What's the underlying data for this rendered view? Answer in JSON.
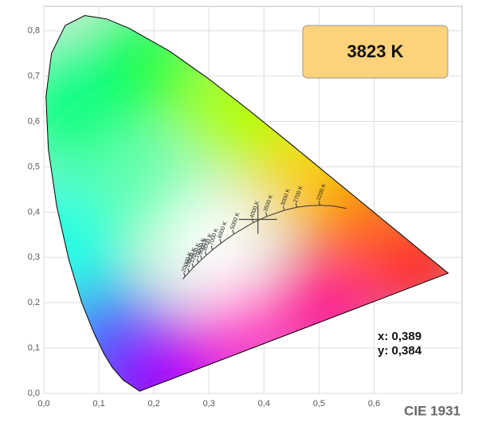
{
  "chart_data": {
    "type": "chromaticity",
    "xlim": [
      0,
      0.76
    ],
    "ylim": [
      0,
      0.854
    ],
    "xticks": [
      {
        "value": 0,
        "label": "0,0"
      },
      {
        "value": 0.1,
        "label": "0,1"
      },
      {
        "value": 0.2,
        "label": "0,2"
      },
      {
        "value": 0.3,
        "label": "0,3"
      },
      {
        "value": 0.4,
        "label": "0,4"
      },
      {
        "value": 0.5,
        "label": "0,5"
      },
      {
        "value": 0.6,
        "label": "0,6"
      }
    ],
    "yticks": [
      {
        "value": 0,
        "label": "0,0"
      },
      {
        "value": 0.1,
        "label": "0,1"
      },
      {
        "value": 0.2,
        "label": "0,2"
      },
      {
        "value": 0.3,
        "label": "0,3"
      },
      {
        "value": 0.4,
        "label": "0,4"
      },
      {
        "value": 0.5,
        "label": "0,5"
      },
      {
        "value": 0.6,
        "label": "0,6"
      },
      {
        "value": 0.7,
        "label": "0,7"
      },
      {
        "value": 0.8,
        "label": "0,8"
      }
    ],
    "grid": true,
    "spectral_locus": {
      "x": [
        0.1741,
        0.144,
        0.1241,
        0.1096,
        0.0913,
        0.0687,
        0.0454,
        0.0235,
        0.0082,
        0.0039,
        0.0139,
        0.0389,
        0.0743,
        0.1142,
        0.1547,
        0.2296,
        0.3016,
        0.3731,
        0.4441,
        0.5125,
        0.5752,
        0.627,
        0.6658,
        0.6915,
        0.7347
      ],
      "y": [
        0.005,
        0.0297,
        0.0578,
        0.0868,
        0.1327,
        0.2007,
        0.295,
        0.4127,
        0.5384,
        0.6548,
        0.7502,
        0.812,
        0.8338,
        0.8262,
        0.8059,
        0.7543,
        0.6923,
        0.6245,
        0.5547,
        0.4866,
        0.4242,
        0.3725,
        0.334,
        0.3083,
        0.2653
      ]
    },
    "planckian_locus": {
      "x": [
        0.5497,
        0.5267,
        0.5018,
        0.477,
        0.4599,
        0.4369,
        0.4053,
        0.3805,
        0.3451,
        0.3221,
        0.3064,
        0.2952,
        0.2869,
        0.2807,
        0.2716,
        0.2637,
        0.2565,
        0.2524
      ],
      "y": [
        0.408,
        0.4133,
        0.4153,
        0.4137,
        0.4106,
        0.4041,
        0.3907,
        0.3768,
        0.3516,
        0.3318,
        0.3166,
        0.3048,
        0.2958,
        0.2884,
        0.2778,
        0.2673,
        0.2577,
        0.2523
      ]
    },
    "cct_labels": [
      {
        "label": "2200 K",
        "x": 0.5018,
        "y": 0.4153
      },
      {
        "label": "2700 K",
        "x": 0.4599,
        "y": 0.4106
      },
      {
        "label": "3000 K",
        "x": 0.4369,
        "y": 0.4041
      },
      {
        "label": "3500 K",
        "x": 0.4053,
        "y": 0.3907
      },
      {
        "label": "4000 K",
        "x": 0.3805,
        "y": 0.3768
      },
      {
        "label": "5000 K",
        "x": 0.3451,
        "y": 0.3516
      },
      {
        "label": "6000 K",
        "x": 0.3221,
        "y": 0.3318
      },
      {
        "label": "7000 K",
        "x": 0.3064,
        "y": 0.3166
      },
      {
        "label": "8000 K",
        "x": 0.2952,
        "y": 0.3048
      },
      {
        "label": "9000 K",
        "x": 0.2869,
        "y": 0.2958
      },
      {
        "label": "10000 K",
        "x": 0.2807,
        "y": 0.2884
      },
      {
        "label": "12000 K",
        "x": 0.2716,
        "y": 0.2778
      },
      {
        "label": "15000 K",
        "x": 0.2637,
        "y": 0.2673
      },
      {
        "label": "20000 K",
        "x": 0.2565,
        "y": 0.2577
      }
    ],
    "measurement": {
      "x": 0.389,
      "y": 0.384,
      "cct_label": "3823 K",
      "x_label": "x: 0,389",
      "y_label": "y: 0,384"
    },
    "footer": "CIE 1931"
  }
}
